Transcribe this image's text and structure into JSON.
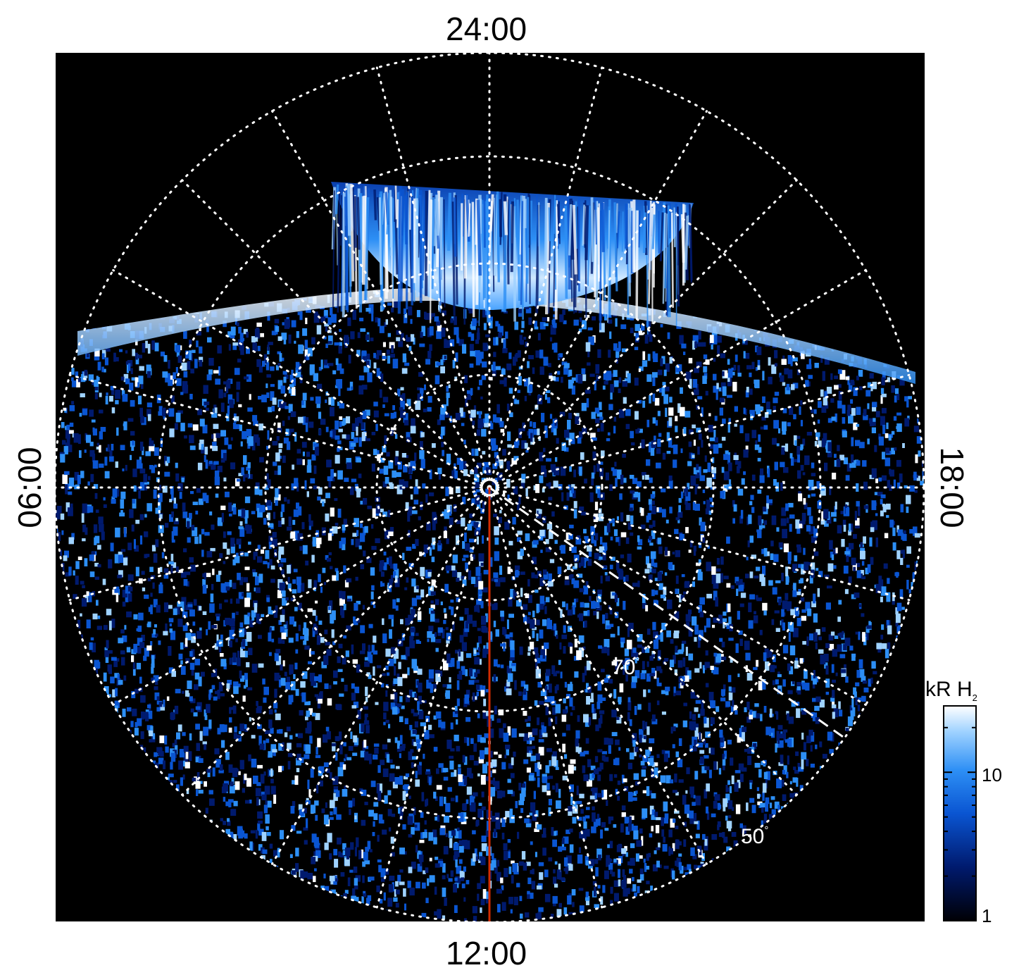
{
  "local_time_labels": {
    "top": "24:00",
    "bottom": "12:00",
    "left": "06:00",
    "right": "18:00"
  },
  "latitude_labels": {
    "inner": "70",
    "outer": "50",
    "degree_symbol": "°"
  },
  "colorbar": {
    "unit": "kR H",
    "subscript": "2",
    "tick_labels": [
      "10",
      "1"
    ],
    "colormap": [
      "#000005",
      "#001a6e",
      "#0a55d2",
      "#2d8ff5",
      "#9fd2ff",
      "#ffffff"
    ]
  },
  "colors": {
    "background": "#000000",
    "grid": "#ffffff",
    "meridian_line": "#d22b00"
  }
}
